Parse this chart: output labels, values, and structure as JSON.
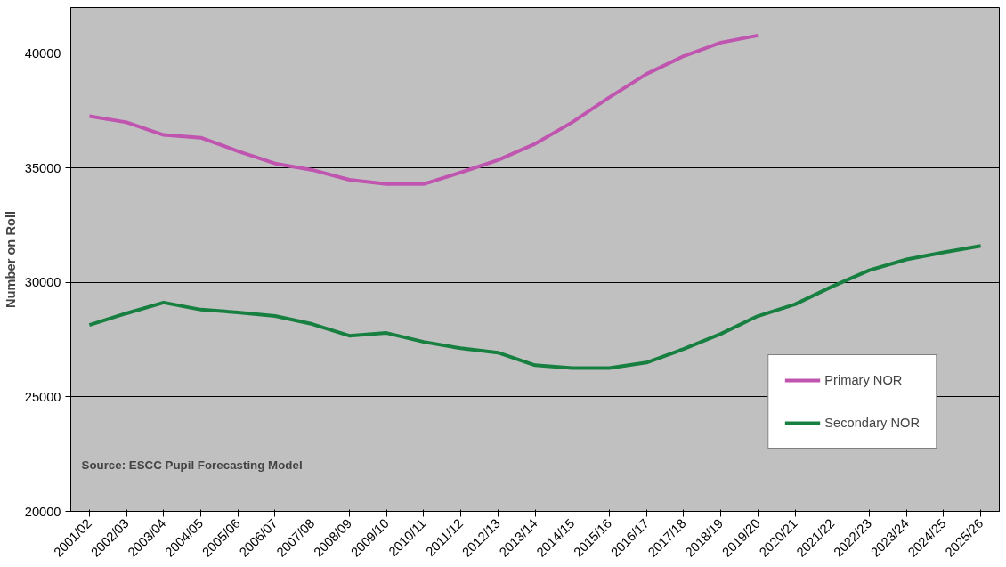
{
  "chart_data": {
    "type": "line",
    "ylabel": "Number on Roll",
    "categories": [
      "2001/02",
      "2002/03",
      "2003/04",
      "2004/05",
      "2005/06",
      "2006/07",
      "2007/08",
      "2008/09",
      "2009/10",
      "2010/11",
      "2011/12",
      "2012/13",
      "2013/14",
      "2014/15",
      "2015/16",
      "2016/17",
      "2017/18",
      "2018/19",
      "2019/20",
      "2020/21",
      "2021/22",
      "2022/23",
      "2023/24",
      "2024/25",
      "2025/26"
    ],
    "series": [
      {
        "name": "Primary NOR",
        "color": "#c055b0",
        "values": [
          37260,
          36990,
          36440,
          36320,
          35730,
          35190,
          34910,
          34480,
          34290,
          34290,
          34800,
          35340,
          36050,
          36990,
          38080,
          39100,
          39880,
          40470,
          40780,
          null,
          null,
          null,
          null,
          null,
          null
        ]
      },
      {
        "name": "Secondary NOR",
        "color": "#178040",
        "values": [
          28140,
          28650,
          29120,
          28810,
          28690,
          28530,
          28180,
          27670,
          27790,
          27400,
          27120,
          26930,
          26380,
          26260,
          26260,
          26500,
          27090,
          27750,
          28530,
          29040,
          29820,
          30530,
          31000,
          31310,
          31590
        ]
      }
    ],
    "ylim": [
      20000,
      42000
    ],
    "yticks": [
      20000,
      25000,
      30000,
      35000,
      40000
    ],
    "grid": "y",
    "legend": "bottom right",
    "marker": "none",
    "line_style": "solid",
    "annotations": [
      "Source:  ESCC Pupil Forecasting Model"
    ]
  }
}
